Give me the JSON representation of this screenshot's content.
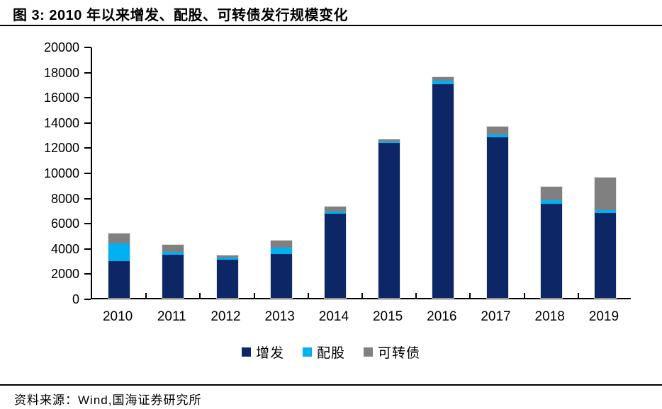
{
  "header": {
    "title": "图 3: 2010 年以来增发、配股、可转债发行规模变化"
  },
  "footer": {
    "source": "资料来源：Wind,国海证券研究所"
  },
  "colors": {
    "zengfa": "#0d2665",
    "peigu": "#00b0f0",
    "kezhuanzhai": "#808080",
    "axis": "#000000"
  },
  "chart_data": {
    "type": "bar",
    "stacked": true,
    "title": "2010 年以来增发、配股、可转债发行规模变化",
    "categories": [
      "2010",
      "2011",
      "2012",
      "2013",
      "2014",
      "2015",
      "2016",
      "2017",
      "2018",
      "2019"
    ],
    "series": [
      {
        "name": "增发",
        "color": "#0d2665",
        "values": [
          2950,
          3400,
          3050,
          3500,
          6700,
          12300,
          16950,
          12750,
          7500,
          6750
        ]
      },
      {
        "name": "配股",
        "color": "#00b0f0",
        "values": [
          1400,
          280,
          130,
          500,
          180,
          110,
          320,
          220,
          280,
          200
        ]
      },
      {
        "name": "可转债",
        "color": "#808080",
        "values": [
          780,
          550,
          220,
          550,
          350,
          150,
          250,
          650,
          1070,
          2600
        ]
      }
    ],
    "xlabel": "",
    "ylabel": "",
    "ylim": [
      0,
      20000
    ],
    "yticks": [
      0,
      2000,
      4000,
      6000,
      8000,
      10000,
      12000,
      14000,
      16000,
      18000,
      20000
    ],
    "grid": false,
    "legend_position": "bottom"
  }
}
